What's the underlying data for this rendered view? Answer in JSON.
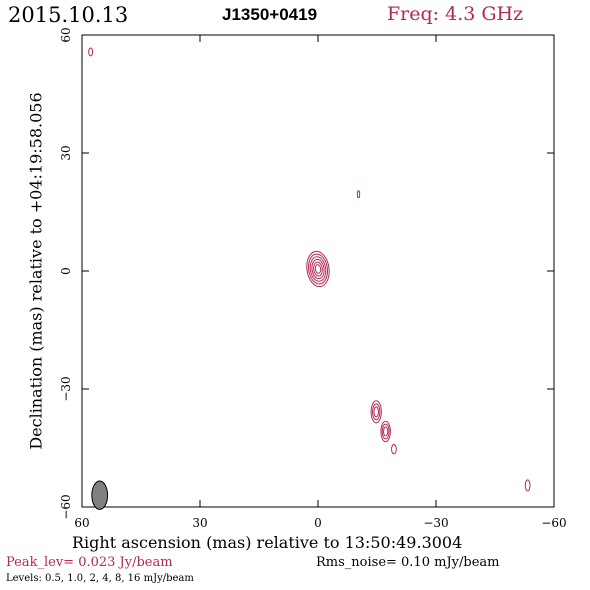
{
  "header": {
    "date": "2015.10.13",
    "source": "J1350+0419",
    "freq": "Freq: 4.3 GHz"
  },
  "footer": {
    "peak": "Peak_lev=  0.023 Jy/beam",
    "rms": "Rms_noise= 0.10 mJy/beam",
    "levels": "Levels: 0.5, 1.0,    2,    4,    8,   16 mJy/beam"
  },
  "colors": {
    "contour": "#b22a50",
    "beam": "#808080",
    "frame": "#000000"
  },
  "chart_data": {
    "type": "contour",
    "xlabel": "Right ascension (mas) relative to 13:50:49.3004",
    "ylabel": "Declination (mas) relative to +04:19:58.056",
    "xlim": [
      60,
      -60
    ],
    "ylim": [
      -60,
      60
    ],
    "x_ticks": [
      "60",
      "30",
      "0",
      "−30",
      "−60"
    ],
    "y_ticks": [
      "60",
      "30",
      "0",
      "−30",
      "−60"
    ],
    "x_tick_values": [
      60,
      30,
      0,
      -30,
      -60
    ],
    "y_tick_values": [
      60,
      30,
      0,
      -30,
      -60
    ],
    "contour_levels_mJy": [
      0.5,
      1.0,
      2,
      4,
      8,
      16
    ],
    "components": [
      {
        "name": "core",
        "ra": 0,
        "dec": 0.5,
        "levels": [
          0.5,
          1.0,
          2,
          4,
          8,
          16
        ],
        "size_ra": 2.8,
        "size_dec": 4.5,
        "tilt": -8
      },
      {
        "name": "jet-a",
        "ra": -14.8,
        "dec": -35.8,
        "levels": [
          0.5,
          1.0,
          2
        ],
        "size_ra": 1.3,
        "size_dec": 2.8,
        "tilt": 0
      },
      {
        "name": "jet-b",
        "ra": -17.2,
        "dec": -40.8,
        "levels": [
          0.5,
          1.0,
          2
        ],
        "size_ra": 1.2,
        "size_dec": 2.6,
        "tilt": 0
      },
      {
        "name": "jet-c",
        "ra": -19.3,
        "dec": -45.3,
        "levels": [
          0.5
        ],
        "size_ra": 0.6,
        "size_dec": 1.2,
        "tilt": 0
      },
      {
        "name": "noise-1",
        "ra": -10.3,
        "dec": 19.5,
        "levels": [
          0.5
        ],
        "size_ra": 0.3,
        "size_dec": 0.9,
        "tilt": 0
      },
      {
        "name": "noise-2",
        "ra": 57.8,
        "dec": 55.7,
        "levels": [
          0.5
        ],
        "size_ra": 0.5,
        "size_dec": 1.0,
        "tilt": 0
      },
      {
        "name": "noise-3",
        "ra": -53.3,
        "dec": -54.5,
        "levels": [
          0.5
        ],
        "size_ra": 0.6,
        "size_dec": 1.4,
        "tilt": 0
      }
    ],
    "beam": {
      "ra": 55.5,
      "dec": -57.0,
      "major": 3.6,
      "minor": 2.0,
      "pa": 0
    }
  }
}
